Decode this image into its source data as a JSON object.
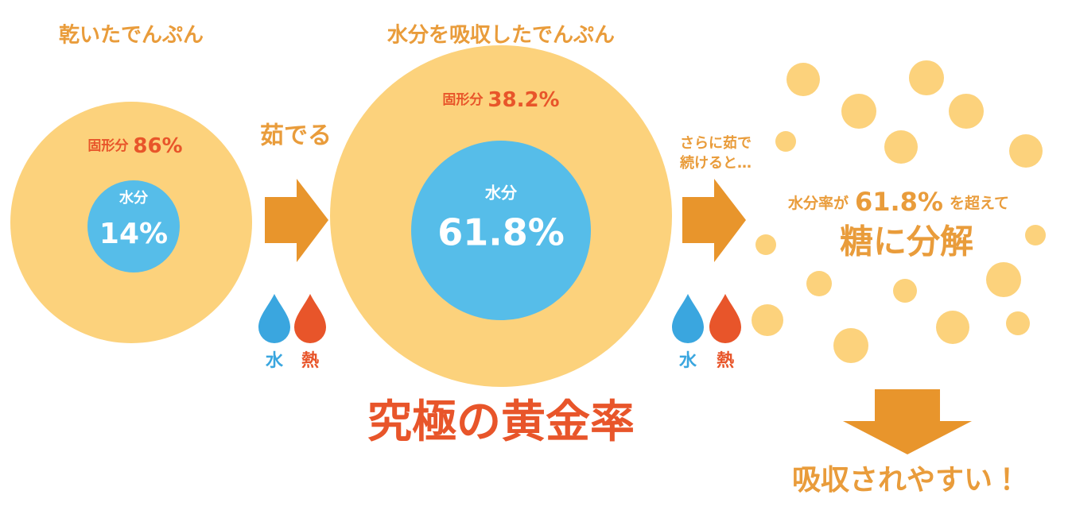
{
  "left": {
    "title": "乾いたでんぷん",
    "solid_label": "固形分",
    "solid_value": "86%",
    "water_label": "水分",
    "water_value": "14%"
  },
  "step1": {
    "label": "茹でる",
    "water": "水",
    "heat": "熱"
  },
  "middle": {
    "title": "水分を吸収したでんぷん",
    "solid_label": "固形分",
    "solid_value": "38.2%",
    "water_label": "水分",
    "water_value": "61.8%"
  },
  "step2": {
    "label_lines": [
      "さらに茹で",
      "続けると…"
    ],
    "water": "水",
    "heat": "熱"
  },
  "right": {
    "lead": "水分率が",
    "value": "61.8%",
    "trail": "を超えて",
    "result": "糖に分解"
  },
  "highlight": "究極の黄金率",
  "conclusion": "吸収されやすい！"
}
